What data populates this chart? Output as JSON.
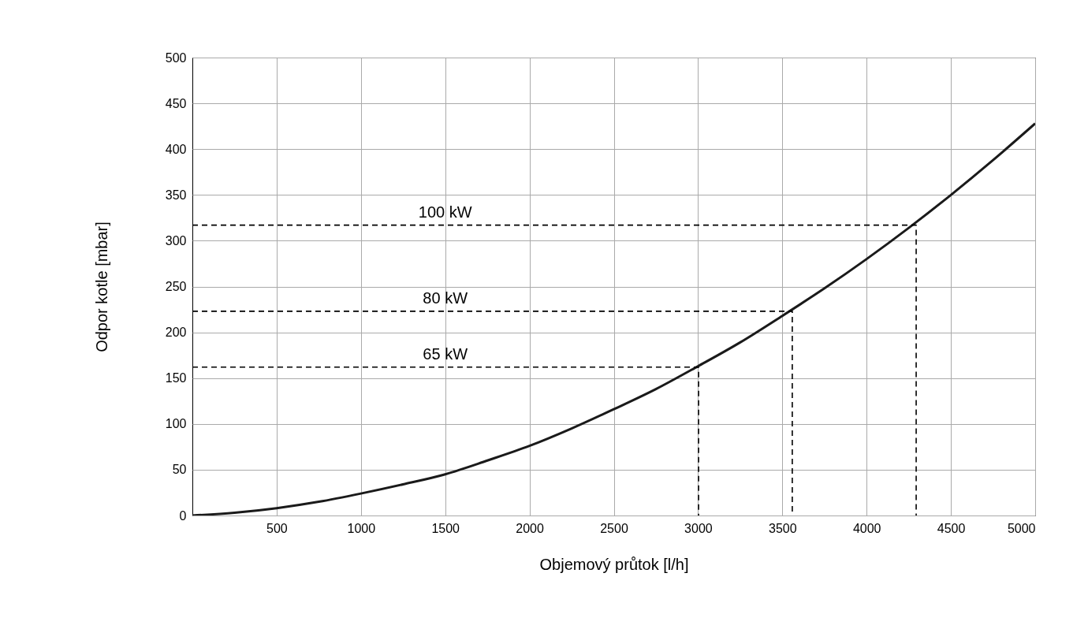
{
  "chart_data": {
    "type": "line",
    "xlabel": "Objemový průtok [l/h]",
    "ylabel": "Odpor kotle [mbar]",
    "xlim": [
      0,
      5000
    ],
    "ylim": [
      0,
      500
    ],
    "xticks": [
      500,
      1000,
      1500,
      2000,
      2500,
      3000,
      3500,
      4000,
      4500,
      5000
    ],
    "yticks": [
      0,
      50,
      100,
      150,
      200,
      250,
      300,
      350,
      400,
      450,
      500
    ],
    "grid": true,
    "legend": false,
    "marker": "none",
    "series": [
      {
        "color": "#1a1a1a",
        "line_style": "solid",
        "x": [
          0,
          250,
          500,
          750,
          1000,
          1250,
          1500,
          1750,
          2000,
          2250,
          2500,
          2750,
          3000,
          3250,
          3500,
          3750,
          4000,
          4250,
          4500,
          4750,
          5000
        ],
        "values": [
          0,
          3,
          8,
          15,
          24,
          34,
          45,
          60,
          76,
          95,
          116,
          138,
          163,
          189,
          218,
          248,
          280,
          314,
          350,
          388,
          428
        ]
      },
      {
        "name": "65 kW",
        "color": "#000000",
        "line_style": "dashed",
        "x": [
          0,
          3003,
          3003
        ],
        "values": [
          162,
          162,
          0
        ]
      },
      {
        "name": "80 kW",
        "color": "#000000",
        "line_style": "dashed",
        "x": [
          0,
          3559,
          3559
        ],
        "values": [
          223,
          223,
          0
        ]
      },
      {
        "name": "100 kW",
        "color": "#000000",
        "line_style": "dashed",
        "x": [
          0,
          4294,
          4294
        ],
        "values": [
          317,
          317,
          0
        ]
      }
    ]
  }
}
